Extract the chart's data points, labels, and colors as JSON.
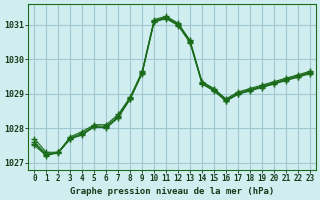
{
  "title": "Graphe pression niveau de la mer (hPa)",
  "background_color": "#d0eef0",
  "grid_color": "#a0c8d0",
  "line_color": "#1a6b1a",
  "xlim": [
    -0.5,
    23.5
  ],
  "ylim": [
    1026.8,
    1031.6
  ],
  "yticks": [
    1027,
    1028,
    1029,
    1030,
    1031
  ],
  "xticks": [
    0,
    1,
    2,
    3,
    4,
    5,
    6,
    7,
    8,
    9,
    10,
    11,
    12,
    13,
    14,
    15,
    16,
    17,
    18,
    19,
    20,
    21,
    22,
    23
  ],
  "series1": [
    1027.5,
    1027.2,
    1027.3,
    1027.7,
    1027.8,
    1028.05,
    1028.0,
    1028.3,
    1028.85,
    1029.6,
    1031.1,
    1031.2,
    1031.0,
    1030.5,
    1029.3,
    1029.1,
    1028.8,
    1029.0,
    1029.1,
    1029.2,
    1029.3,
    1029.4,
    1029.5,
    1029.6
  ],
  "series2": [
    1027.7,
    1027.3,
    1027.3,
    1027.75,
    1027.9,
    1028.1,
    1028.1,
    1028.4,
    1028.9,
    1029.65,
    1031.15,
    1031.25,
    1031.05,
    1030.55,
    1029.35,
    1029.15,
    1028.85,
    1029.05,
    1029.15,
    1029.25,
    1029.35,
    1029.45,
    1029.55,
    1029.65
  ],
  "series3": [
    1027.6,
    1027.25,
    1027.3,
    1027.72,
    1027.85,
    1028.07,
    1028.05,
    1028.35,
    1028.88,
    1029.62,
    1031.12,
    1031.22,
    1031.02,
    1030.52,
    1029.32,
    1029.12,
    1028.82,
    1029.02,
    1029.12,
    1029.22,
    1029.32,
    1029.42,
    1029.52,
    1029.62
  ],
  "series4": [
    1027.55,
    1027.22,
    1027.28,
    1027.68,
    1027.82,
    1028.03,
    1028.02,
    1028.32,
    1028.84,
    1029.58,
    1031.08,
    1031.18,
    1030.98,
    1030.48,
    1029.28,
    1029.08,
    1028.78,
    1028.98,
    1029.08,
    1029.18,
    1029.28,
    1029.38,
    1029.48,
    1029.58
  ]
}
